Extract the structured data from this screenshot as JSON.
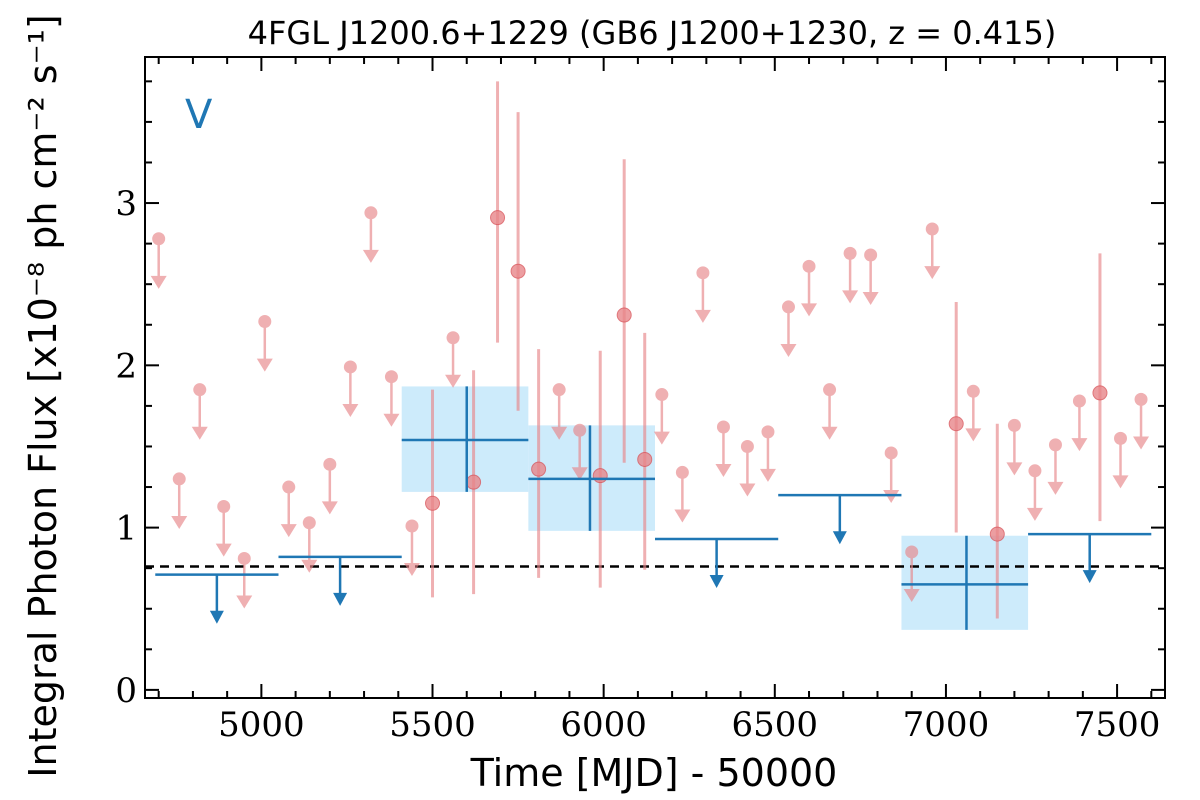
{
  "chart_data": {
    "type": "scatter",
    "title": "4FGL J1200.6+1229 (GB6 J1200+1230, z = 0.415)",
    "xlabel": "Time [MJD] - 50000",
    "ylabel": "Integral Photon Flux [x10⁻⁸ ph cm⁻² s⁻¹]",
    "panel_label": "V",
    "xlim": [
      4660,
      7640
    ],
    "ylim": [
      -0.05,
      3.9
    ],
    "xticks": [
      5000,
      5500,
      6000,
      6500,
      7000,
      7500
    ],
    "yticks": [
      0,
      1,
      2,
      3
    ],
    "xtick_labels": [
      "5000",
      "5500",
      "6000",
      "6500",
      "7000",
      "7500"
    ],
    "ytick_labels": [
      "0",
      "1",
      "2",
      "3"
    ],
    "grid": false,
    "legend": "none",
    "reference_line": {
      "y": 0.76,
      "style": "dashed",
      "color": "#000000"
    },
    "colors": {
      "short_bins": "#e8868a",
      "long_bins": "#1f77b4",
      "long_bin_box": "#cdebfb",
      "panel_label": "#1f77b4"
    },
    "short_bin_upper_limits": [
      {
        "x": 4700,
        "y": 2.78
      },
      {
        "x": 4760,
        "y": 1.3
      },
      {
        "x": 4820,
        "y": 1.85
      },
      {
        "x": 4890,
        "y": 1.13
      },
      {
        "x": 4950,
        "y": 0.81
      },
      {
        "x": 5010,
        "y": 2.27
      },
      {
        "x": 5080,
        "y": 1.25
      },
      {
        "x": 5140,
        "y": 1.03
      },
      {
        "x": 5200,
        "y": 1.39
      },
      {
        "x": 5260,
        "y": 1.99
      },
      {
        "x": 5320,
        "y": 2.94
      },
      {
        "x": 5380,
        "y": 1.93
      },
      {
        "x": 5440,
        "y": 1.01
      },
      {
        "x": 5560,
        "y": 2.17
      },
      {
        "x": 5870,
        "y": 1.85
      },
      {
        "x": 5930,
        "y": 1.6
      },
      {
        "x": 6170,
        "y": 1.82
      },
      {
        "x": 6230,
        "y": 1.34
      },
      {
        "x": 6290,
        "y": 2.57
      },
      {
        "x": 6350,
        "y": 1.62
      },
      {
        "x": 6420,
        "y": 1.5
      },
      {
        "x": 6480,
        "y": 1.59
      },
      {
        "x": 6540,
        "y": 2.36
      },
      {
        "x": 6600,
        "y": 2.61
      },
      {
        "x": 6660,
        "y": 1.85
      },
      {
        "x": 6720,
        "y": 2.69
      },
      {
        "x": 6780,
        "y": 2.68
      },
      {
        "x": 6840,
        "y": 1.46
      },
      {
        "x": 6900,
        "y": 0.85
      },
      {
        "x": 6960,
        "y": 2.84
      },
      {
        "x": 7080,
        "y": 1.84
      },
      {
        "x": 7200,
        "y": 1.63
      },
      {
        "x": 7260,
        "y": 1.35
      },
      {
        "x": 7320,
        "y": 1.51
      },
      {
        "x": 7390,
        "y": 1.78
      },
      {
        "x": 7510,
        "y": 1.55
      },
      {
        "x": 7570,
        "y": 1.79
      }
    ],
    "short_bin_detections": [
      {
        "x": 5500,
        "y": 1.15,
        "ylow": 0.57,
        "yhigh": 1.85
      },
      {
        "x": 5620,
        "y": 1.28,
        "ylow": 0.59,
        "yhigh": 1.97
      },
      {
        "x": 5690,
        "y": 2.91,
        "ylow": 2.14,
        "yhigh": 3.75
      },
      {
        "x": 5750,
        "y": 2.58,
        "ylow": 1.72,
        "yhigh": 3.56
      },
      {
        "x": 5810,
        "y": 1.36,
        "ylow": 0.69,
        "yhigh": 2.1
      },
      {
        "x": 5990,
        "y": 1.32,
        "ylow": 0.63,
        "yhigh": 2.09
      },
      {
        "x": 6060,
        "y": 2.31,
        "ylow": 1.4,
        "yhigh": 3.27
      },
      {
        "x": 6120,
        "y": 1.42,
        "ylow": 0.74,
        "yhigh": 2.2
      },
      {
        "x": 7030,
        "y": 1.64,
        "ylow": 0.97,
        "yhigh": 2.39
      },
      {
        "x": 7150,
        "y": 0.96,
        "ylow": 0.44,
        "yhigh": 1.64
      },
      {
        "x": 7450,
        "y": 1.83,
        "ylow": 1.04,
        "yhigh": 2.69
      }
    ],
    "long_bin_upper_limits": [
      {
        "x": 4870,
        "xmin": 4690,
        "xmax": 5050,
        "y": 0.71
      },
      {
        "x": 5230,
        "xmin": 5050,
        "xmax": 5410,
        "y": 0.82
      },
      {
        "x": 6330,
        "xmin": 6150,
        "xmax": 6510,
        "y": 0.93
      },
      {
        "x": 6690,
        "xmin": 6510,
        "xmax": 6870,
        "y": 1.2
      },
      {
        "x": 7420,
        "xmin": 7240,
        "xmax": 7600,
        "y": 0.96
      }
    ],
    "long_bin_detections": [
      {
        "x": 5600,
        "xmin": 5410,
        "xmax": 5780,
        "y": 1.54,
        "ylow": 1.22,
        "yhigh": 1.87
      },
      {
        "x": 5960,
        "xmin": 5780,
        "xmax": 6150,
        "y": 1.3,
        "ylow": 0.98,
        "yhigh": 1.63
      },
      {
        "x": 7060,
        "xmin": 6870,
        "xmax": 7240,
        "y": 0.65,
        "ylow": 0.37,
        "yhigh": 0.95
      }
    ]
  }
}
